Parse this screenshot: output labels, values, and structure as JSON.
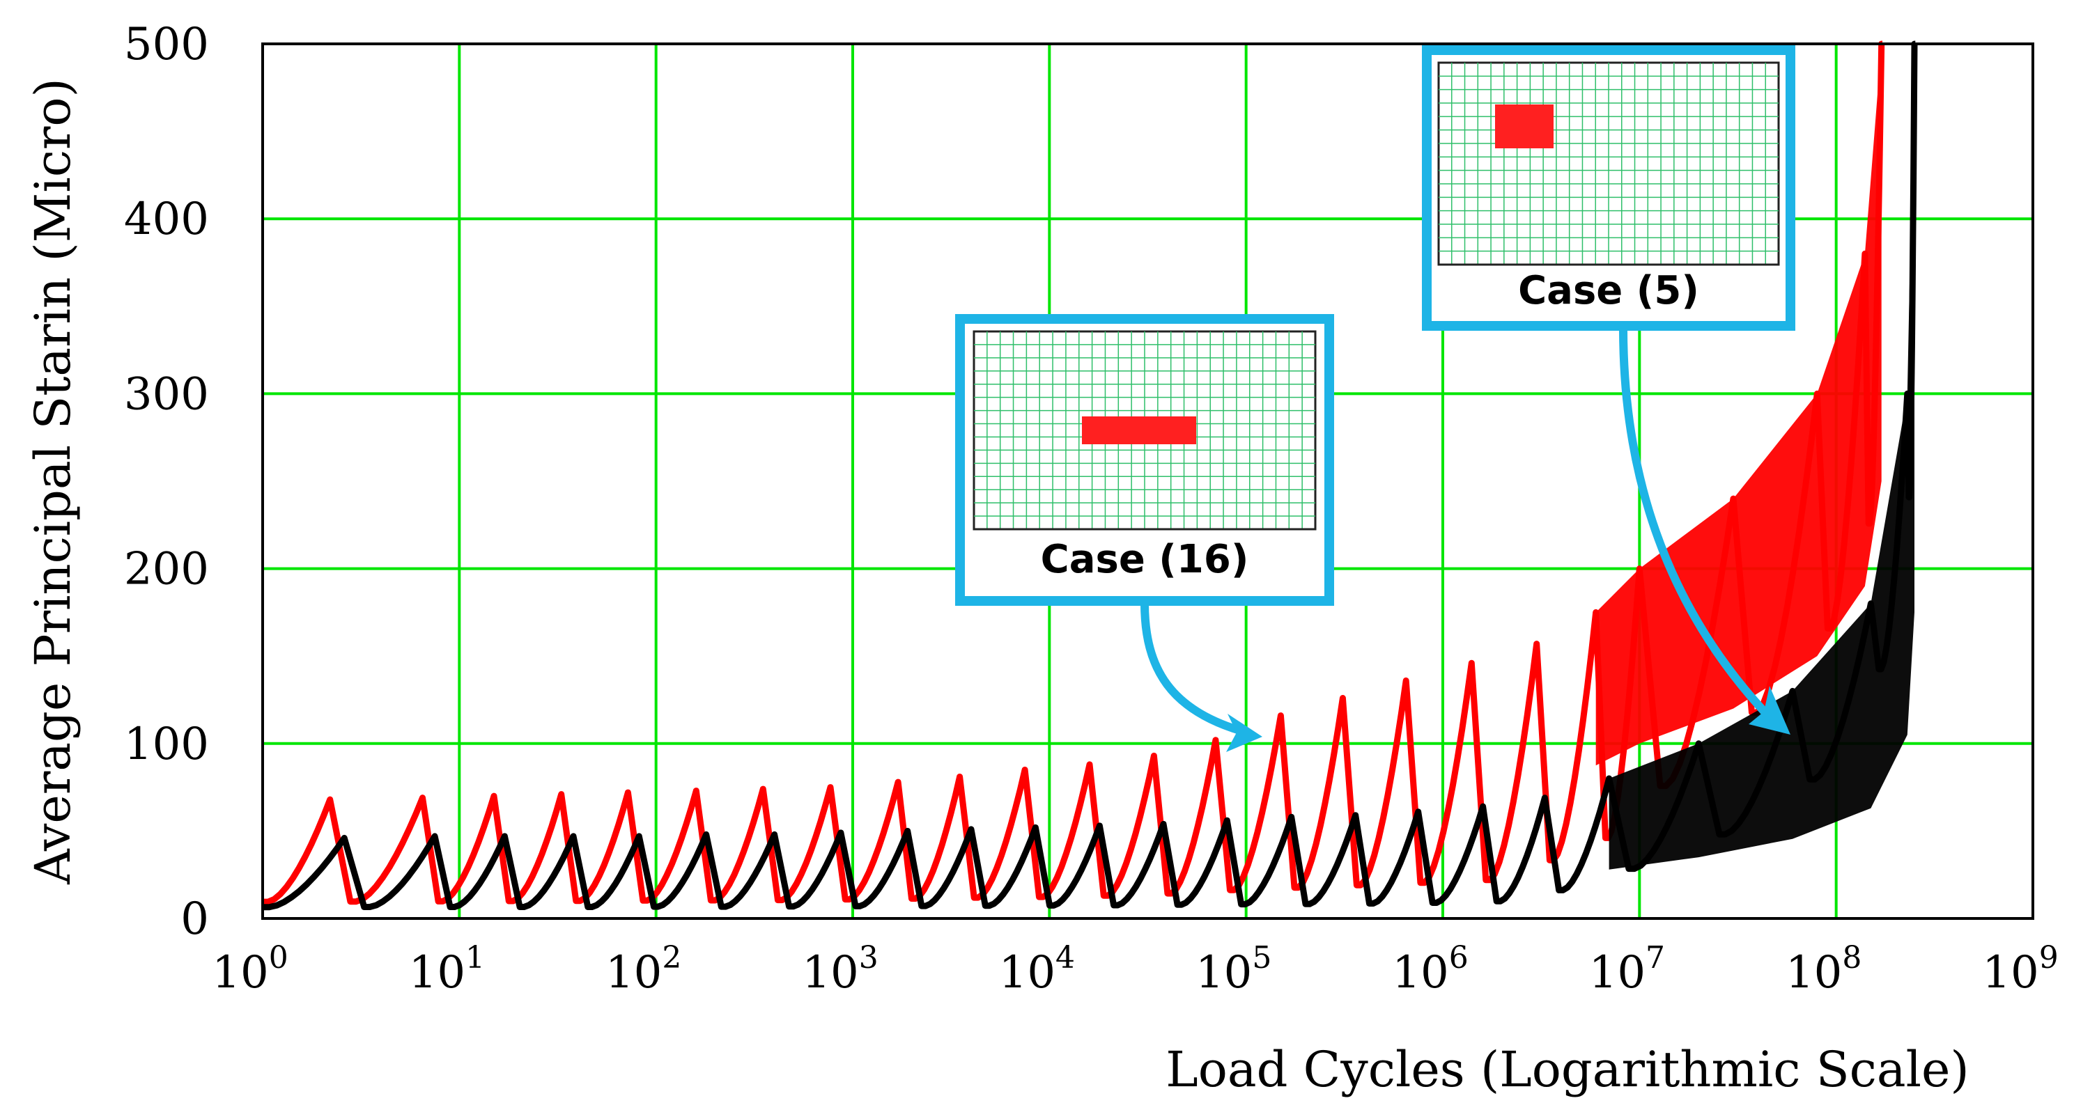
{
  "chart_data": {
    "type": "line",
    "title": "",
    "xlabel": "Load Cycles (Logarithmic Scale)",
    "ylabel": "Average Principal Starin (Micro)",
    "xscale": "log10",
    "xlim": [
      1,
      1000000000
    ],
    "ylim": [
      0,
      500
    ],
    "grid": true,
    "x_ticks": [
      {
        "base": "10",
        "exp": "0"
      },
      {
        "base": "10",
        "exp": "1"
      },
      {
        "base": "10",
        "exp": "2"
      },
      {
        "base": "10",
        "exp": "3"
      },
      {
        "base": "10",
        "exp": "4"
      },
      {
        "base": "10",
        "exp": "5"
      },
      {
        "base": "10",
        "exp": "6"
      },
      {
        "base": "10",
        "exp": "7"
      },
      {
        "base": "10",
        "exp": "8"
      },
      {
        "base": "10",
        "exp": "9"
      }
    ],
    "y_ticks": [
      "0",
      "100",
      "200",
      "300",
      "400",
      "500"
    ],
    "series": [
      {
        "name": "Case (16)",
        "color": "#ff0000",
        "peaks": [
          {
            "cycles": 2.2,
            "strain": 68
          },
          {
            "cycles": 6.5,
            "strain": 69
          },
          {
            "cycles": 15,
            "strain": 70
          },
          {
            "cycles": 33,
            "strain": 71
          },
          {
            "cycles": 72,
            "strain": 72
          },
          {
            "cycles": 160,
            "strain": 73
          },
          {
            "cycles": 350,
            "strain": 74
          },
          {
            "cycles": 770,
            "strain": 75
          },
          {
            "cycles": 1700,
            "strain": 78
          },
          {
            "cycles": 3500,
            "strain": 81
          },
          {
            "cycles": 7500,
            "strain": 85
          },
          {
            "cycles": 16000,
            "strain": 88
          },
          {
            "cycles": 34000,
            "strain": 93
          },
          {
            "cycles": 70000,
            "strain": 102
          },
          {
            "cycles": 150000,
            "strain": 116
          },
          {
            "cycles": 310000,
            "strain": 126
          },
          {
            "cycles": 650000,
            "strain": 136
          },
          {
            "cycles": 1400000,
            "strain": 146
          },
          {
            "cycles": 3000000,
            "strain": 157
          },
          {
            "cycles": 6000000,
            "strain": 175
          },
          {
            "cycles": 10000000,
            "strain": 200
          },
          {
            "cycles": 30000000,
            "strain": 240
          },
          {
            "cycles": 80000000,
            "strain": 300
          },
          {
            "cycles": 140000000,
            "strain": 380
          },
          {
            "cycles": 170000000,
            "strain": 500
          }
        ]
      },
      {
        "name": "Case (5)",
        "color": "#000000",
        "peaks": [
          {
            "cycles": 2.6,
            "strain": 46
          },
          {
            "cycles": 7.5,
            "strain": 47
          },
          {
            "cycles": 17,
            "strain": 47
          },
          {
            "cycles": 38,
            "strain": 47
          },
          {
            "cycles": 82,
            "strain": 47
          },
          {
            "cycles": 180,
            "strain": 48
          },
          {
            "cycles": 400,
            "strain": 48
          },
          {
            "cycles": 870,
            "strain": 49
          },
          {
            "cycles": 1900,
            "strain": 50
          },
          {
            "cycles": 4000,
            "strain": 51
          },
          {
            "cycles": 8500,
            "strain": 52
          },
          {
            "cycles": 18000,
            "strain": 53
          },
          {
            "cycles": 38000,
            "strain": 54
          },
          {
            "cycles": 80000,
            "strain": 56
          },
          {
            "cycles": 170000,
            "strain": 58
          },
          {
            "cycles": 360000,
            "strain": 59
          },
          {
            "cycles": 750000,
            "strain": 61
          },
          {
            "cycles": 1600000,
            "strain": 64
          },
          {
            "cycles": 3300000,
            "strain": 69
          },
          {
            "cycles": 7000000,
            "strain": 80
          },
          {
            "cycles": 20000000,
            "strain": 100
          },
          {
            "cycles": 60000000,
            "strain": 130
          },
          {
            "cycles": 150000000,
            "strain": 180
          },
          {
            "cycles": 230000000,
            "strain": 300
          },
          {
            "cycles": 250000000,
            "strain": 500
          }
        ]
      }
    ],
    "annotations": [
      {
        "label": "Case (16)",
        "target_cycles": 130000,
        "target_strain": 103
      },
      {
        "label": "Case (5)",
        "target_cycles": 70000000,
        "target_strain": 107
      }
    ]
  },
  "colors": {
    "grid": "#00e600",
    "inset_border": "#1eb4e6",
    "case16": "#ff0000",
    "case5": "#000000"
  }
}
